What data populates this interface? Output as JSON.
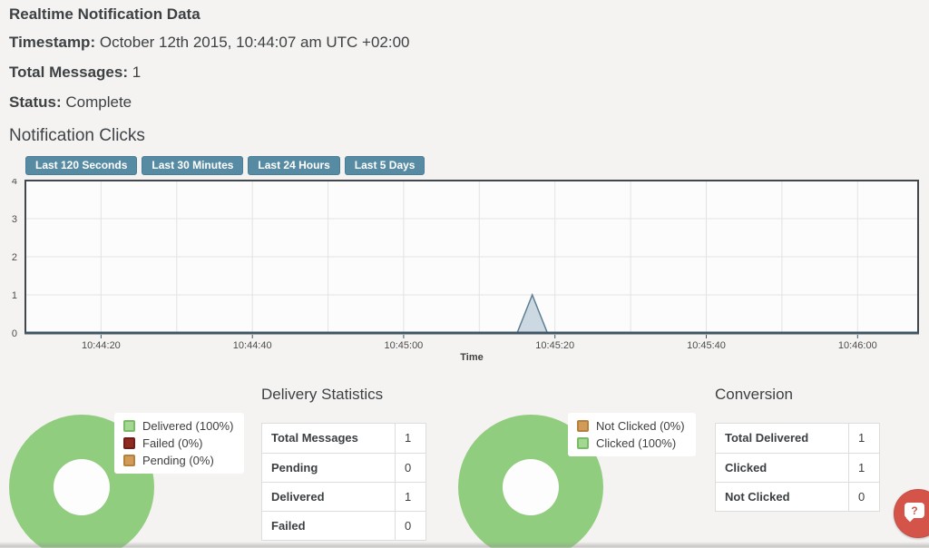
{
  "header": {
    "title": "Realtime Notification Data",
    "fields": [
      {
        "label": "Timestamp:",
        "value": "October 12th 2015, 10:44:07 am UTC +02:00"
      },
      {
        "label": "Total Messages:",
        "value": "1"
      },
      {
        "label": "Status:",
        "value": "Complete"
      }
    ]
  },
  "clicks_section": {
    "title": "Notification Clicks",
    "range_buttons": [
      "Last 120 Seconds",
      "Last 30 Minutes",
      "Last 24 Hours",
      "Last 5 Days"
    ]
  },
  "chart_data": [
    {
      "id": "notification-clicks",
      "type": "area",
      "title": "Notification Clicks",
      "xlabel": "Time",
      "ylabel": "",
      "ylim": [
        0,
        4
      ],
      "y_ticks": [
        0,
        1,
        2,
        3,
        4
      ],
      "x_range": [
        "10:44:10",
        "10:46:08"
      ],
      "x_ticks": [
        "10:44:20",
        "10:44:40",
        "10:45:00",
        "10:45:20",
        "10:45:40",
        "10:46:00"
      ],
      "x_gridline_step_s": 10,
      "grid": true,
      "legend_position": "none",
      "series": [
        {
          "name": "Clicks",
          "points": [
            [
              "10:44:10",
              0
            ],
            [
              "10:45:15",
              0
            ],
            [
              "10:45:17",
              1
            ],
            [
              "10:45:19",
              0
            ],
            [
              "10:46:08",
              0
            ]
          ]
        }
      ],
      "colors": {
        "plot_bg": "#fcfcfc",
        "plot_border": "#41474c",
        "grid": "#e3e3e3",
        "axis_line": "#3e5665",
        "area_fill": "#cdd9e2",
        "area_stroke": "#5d7d91"
      }
    },
    {
      "id": "delivery-donut",
      "type": "pie",
      "donut": true,
      "slices": [
        {
          "label": "Delivered",
          "pct": 100,
          "color": "#90cd7f",
          "legend": "Delivered (100%)",
          "swatch": "#a3d792",
          "swatch_border": "#7abb68"
        },
        {
          "label": "Failed",
          "pct": 0,
          "color": "#8f2a21",
          "legend": "Failed (0%)",
          "swatch": "#8f2a21",
          "swatch_border": "#6e1f18"
        },
        {
          "label": "Pending",
          "pct": 0,
          "color": "#d39b58",
          "legend": "Pending (0%)",
          "swatch": "#d39b58",
          "swatch_border": "#b5813f"
        }
      ]
    },
    {
      "id": "conversion-donut",
      "type": "pie",
      "donut": true,
      "slices": [
        {
          "label": "Not Clicked",
          "pct": 0,
          "color": "#d39b58",
          "legend": "Not Clicked (0%)",
          "swatch": "#d39b58",
          "swatch_border": "#b5813f"
        },
        {
          "label": "Clicked",
          "pct": 100,
          "color": "#90cd7f",
          "legend": "Clicked (100%)",
          "swatch": "#a3d792",
          "swatch_border": "#7abb68"
        }
      ]
    }
  ],
  "delivery_statistics": {
    "title": "Delivery Statistics",
    "rows": [
      {
        "label": "Total Messages",
        "value": "1"
      },
      {
        "label": "Pending",
        "value": "0"
      },
      {
        "label": "Delivered",
        "value": "1"
      },
      {
        "label": "Failed",
        "value": "0"
      }
    ]
  },
  "conversion": {
    "title": "Conversion",
    "rows": [
      {
        "label": "Total Delivered",
        "value": "1"
      },
      {
        "label": "Clicked",
        "value": "1"
      },
      {
        "label": "Not Clicked",
        "value": "0"
      }
    ]
  },
  "help": {
    "glyph": "?"
  },
  "colors": {
    "page_bg": "#f4f3f1",
    "text_dark": "#3d4144",
    "button_bg": "#578ba4",
    "button_border": "#4b7d95",
    "table_border": "#dddddd",
    "donut_hole": "#fdfdfd",
    "help_red": "#d4544a"
  }
}
